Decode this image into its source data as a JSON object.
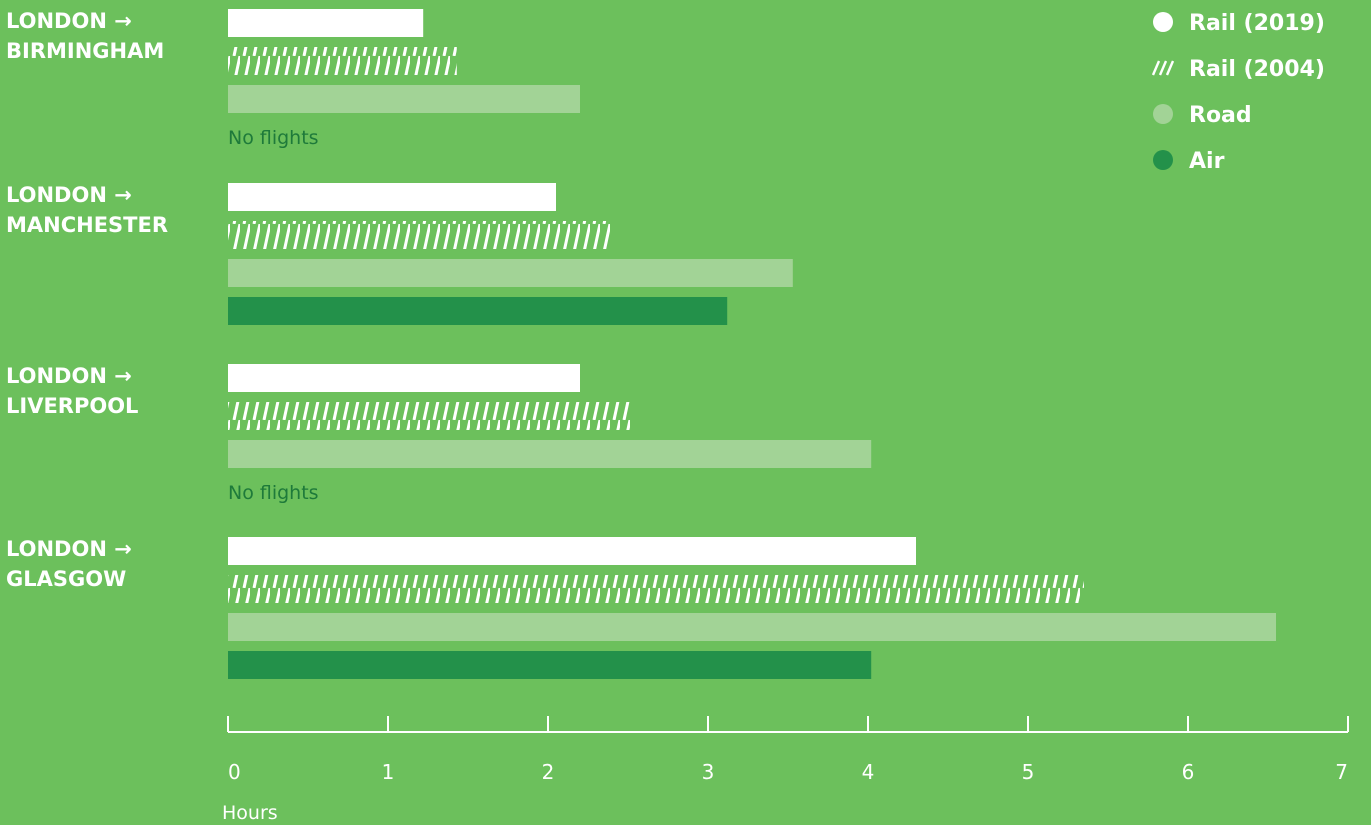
{
  "chart_data": {
    "type": "bar",
    "orientation": "horizontal",
    "xlabel": "Hours",
    "xlim": [
      0,
      7
    ],
    "xticks": [
      0,
      1,
      2,
      3,
      4,
      5,
      6,
      7
    ],
    "grid": false,
    "legend_position": "top-right",
    "categories": [
      {
        "line1": "LONDON →",
        "line2": "BIRMINGHAM"
      },
      {
        "line1": "LONDON →",
        "line2": "MANCHESTER"
      },
      {
        "line1": "LONDON →",
        "line2": "LIVERPOOL"
      },
      {
        "line1": "LONDON →",
        "line2": "GLASGOW"
      }
    ],
    "series": [
      {
        "name": "Rail (2019)",
        "style": "solid",
        "color": "#ffffff",
        "values": [
          1.22,
          2.05,
          2.2,
          4.3
        ]
      },
      {
        "name": "Rail (2004)",
        "style": "hatched",
        "color": "#ffffff",
        "values": [
          1.43,
          2.4,
          2.52,
          5.35
        ]
      },
      {
        "name": "Road",
        "style": "solid",
        "color": "#a2d396",
        "values": [
          2.2,
          3.53,
          4.02,
          6.55
        ]
      },
      {
        "name": "Air",
        "style": "solid",
        "color": "#23914a",
        "values": [
          null,
          3.12,
          null,
          4.02
        ]
      }
    ],
    "no_data_label": "No flights"
  }
}
